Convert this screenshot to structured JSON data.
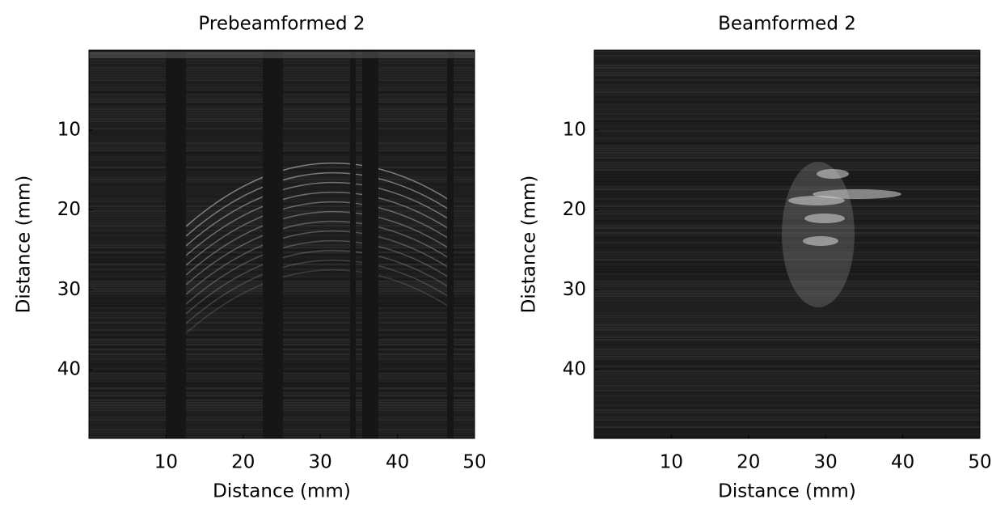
{
  "chart_data": [
    {
      "type": "image",
      "title": "Prebeamformed 2",
      "xlabel": "Distance (mm)",
      "ylabel": "Distance (mm)",
      "xlim": [
        0,
        50
      ],
      "ylim": [
        0,
        48.6
      ],
      "y_reversed": true,
      "xticks": [
        10,
        20,
        30,
        40,
        50
      ],
      "yticks": [
        10,
        20,
        30,
        40
      ]
    },
    {
      "type": "image",
      "title": "Beamformed 2",
      "xlabel": "Distance (mm)",
      "ylabel": "Distance (mm)",
      "xlim": [
        0,
        50
      ],
      "ylim": [
        0,
        48.6
      ],
      "y_reversed": true,
      "xticks": [
        10,
        20,
        30,
        40,
        50
      ],
      "yticks": [
        10,
        20,
        30,
        40
      ]
    }
  ]
}
